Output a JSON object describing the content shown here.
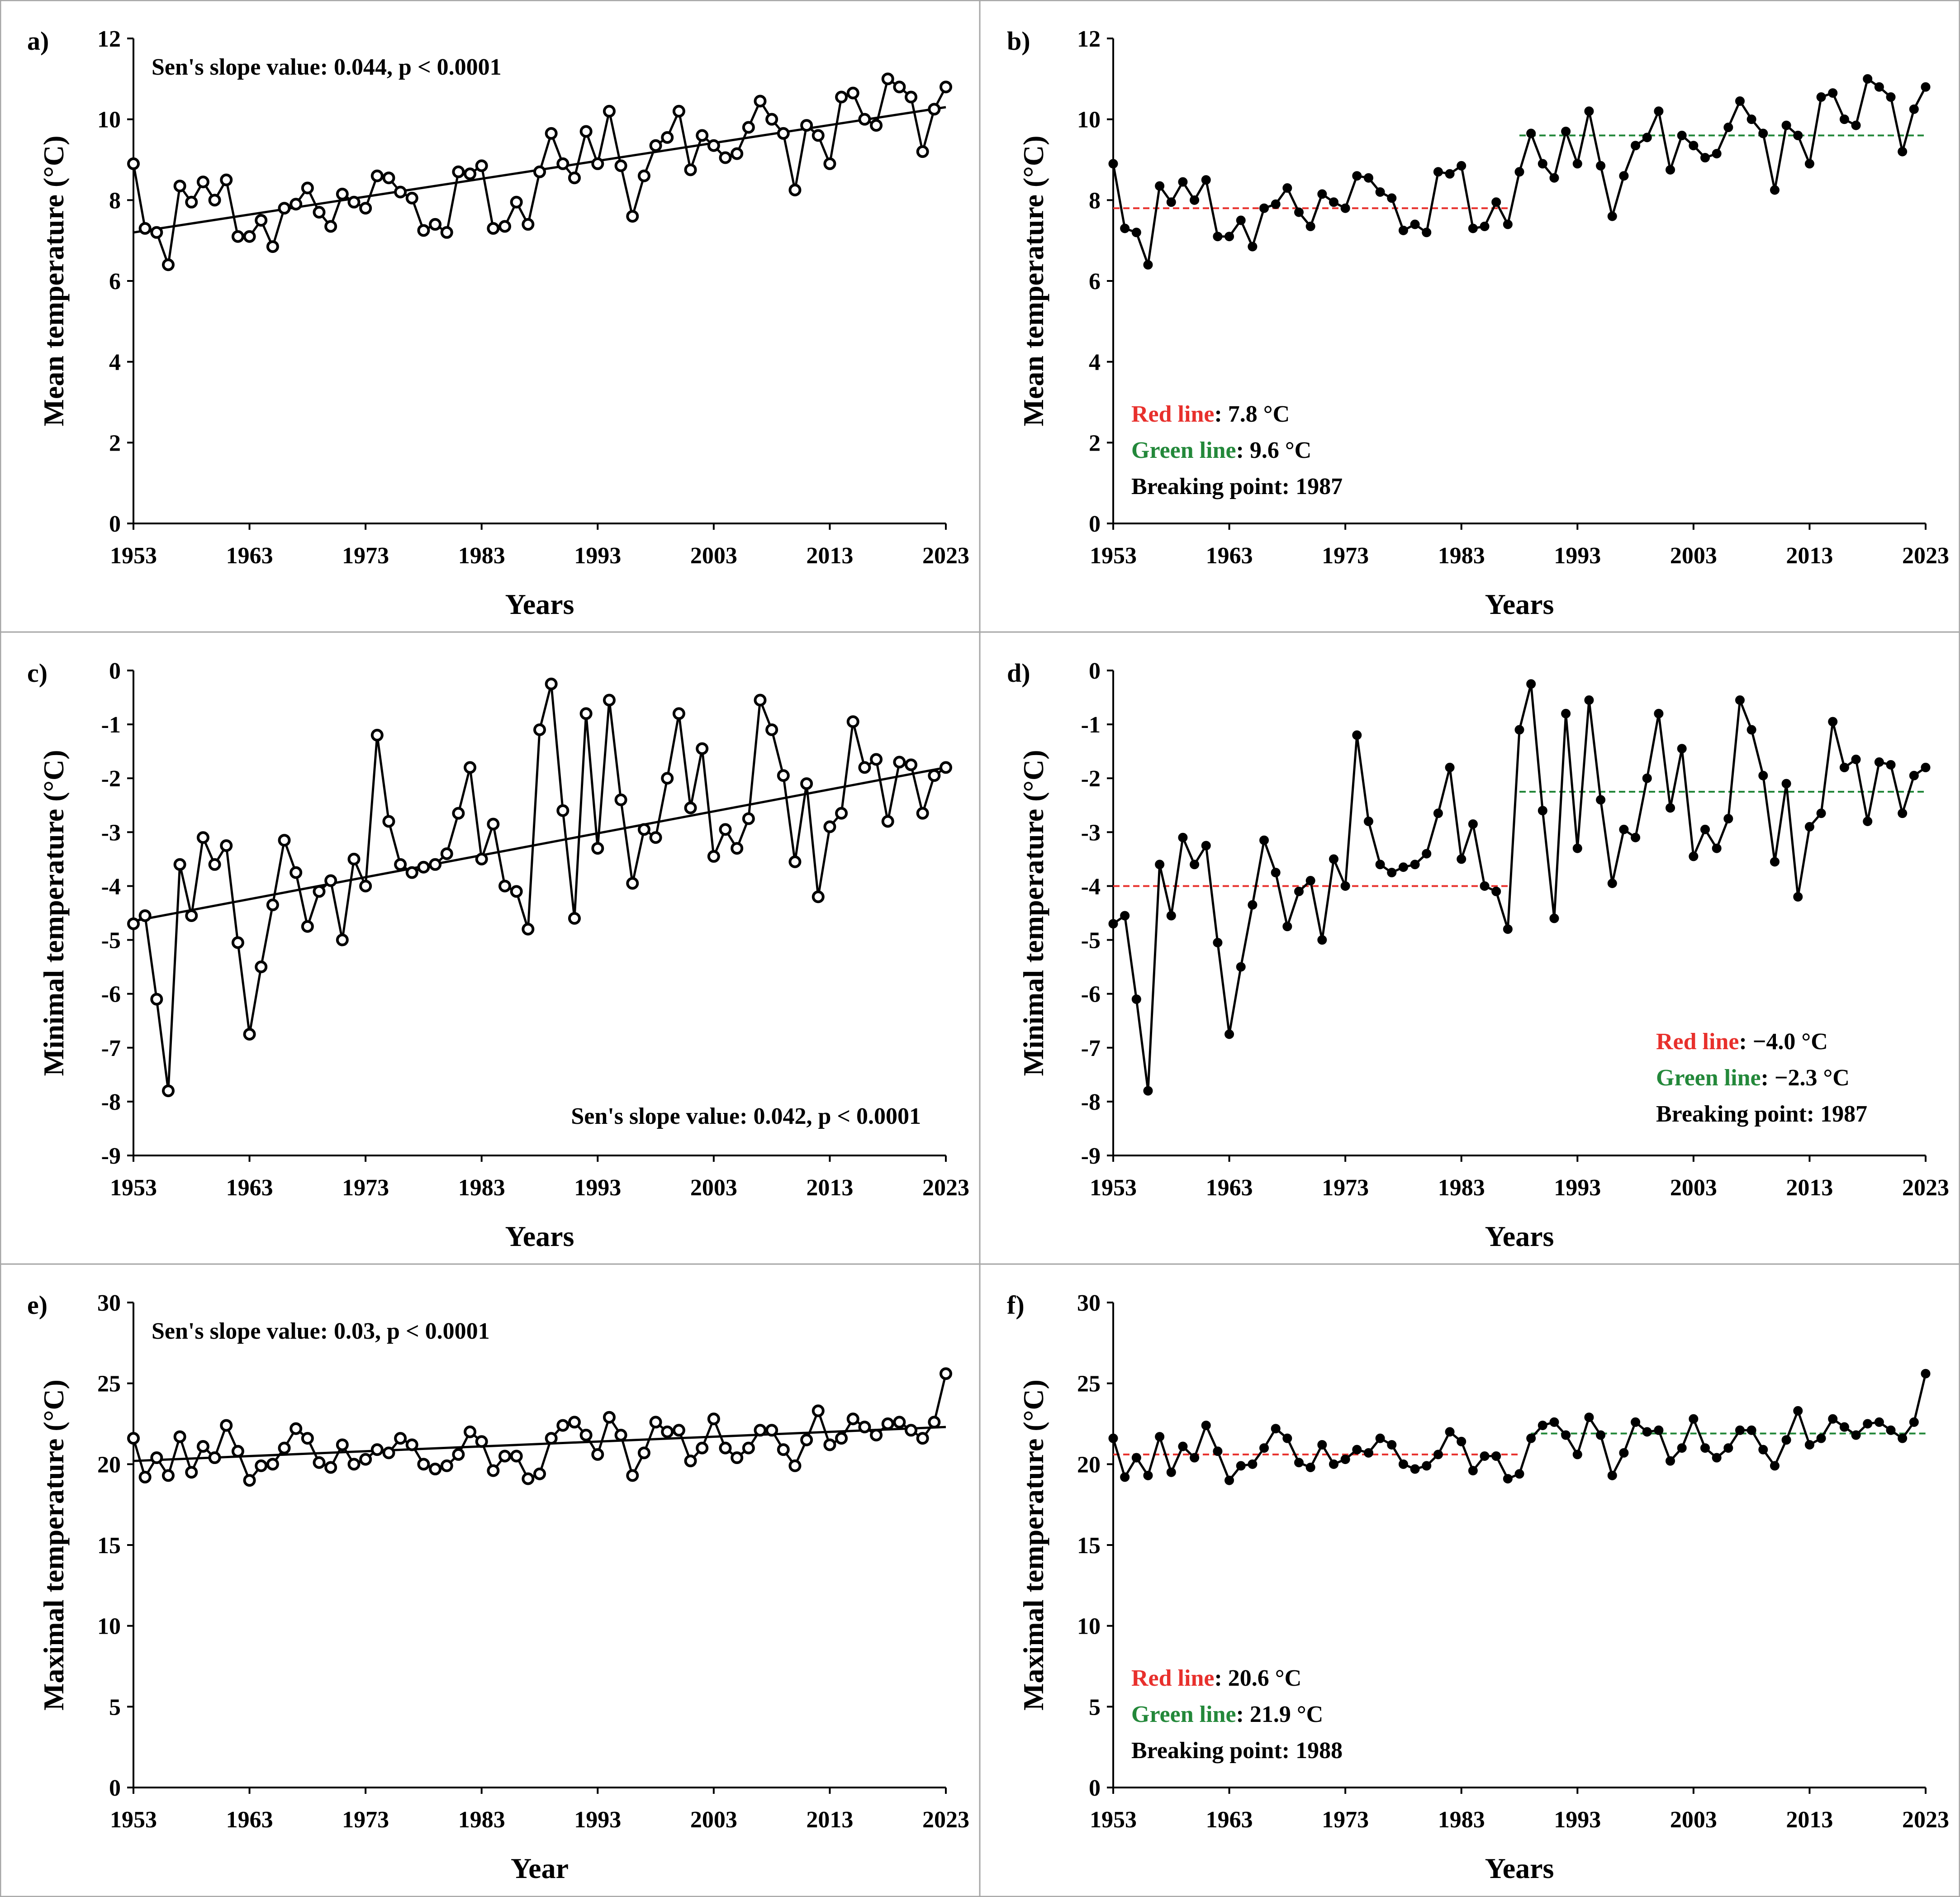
{
  "colors": {
    "red": "#e8302c",
    "green": "#23883a",
    "frame": "#a6a6a6"
  },
  "chart_data": [
    {
      "id": "a",
      "tag": "a)",
      "type": "line",
      "xlabel": "Years",
      "ylabel": "Mean temperature (°C)",
      "xlim": [
        1953,
        2023
      ],
      "ylim": [
        0,
        12
      ],
      "xticks": [
        "1953",
        "1963",
        "1973",
        "1983",
        "1993",
        "2003",
        "2013",
        "2023"
      ],
      "yticks": [
        "0",
        "2",
        "4",
        "6",
        "8",
        "10",
        "12"
      ],
      "marker": "open",
      "x_start": 1953,
      "values": [
        8.9,
        7.3,
        7.2,
        6.4,
        8.35,
        7.95,
        8.45,
        8.0,
        8.5,
        7.1,
        7.1,
        7.5,
        6.85,
        7.8,
        7.9,
        8.3,
        7.7,
        7.35,
        8.15,
        7.95,
        7.8,
        8.6,
        8.55,
        8.2,
        8.05,
        7.25,
        7.4,
        7.2,
        8.7,
        8.65,
        8.85,
        7.3,
        7.35,
        7.95,
        7.4,
        8.7,
        9.65,
        8.9,
        8.55,
        9.7,
        8.9,
        10.2,
        8.85,
        7.6,
        8.6,
        9.35,
        9.55,
        10.2,
        8.75,
        9.6,
        9.35,
        9.05,
        9.15,
        9.8,
        10.45,
        10.0,
        9.65,
        8.25,
        9.85,
        9.6,
        8.9,
        10.55,
        10.65,
        10.0,
        9.85,
        11.0,
        10.8,
        10.55,
        9.2,
        10.25,
        10.8
      ],
      "trend": {
        "from": [
          1953,
          7.2
        ],
        "to": [
          2023,
          10.3
        ]
      },
      "annotation": "Sen's slope value: 0.044, p < 0.0001"
    },
    {
      "id": "b",
      "tag": "b)",
      "type": "line",
      "xlabel": "Years",
      "ylabel": "Mean temperature (°C)",
      "xlim": [
        1953,
        2023
      ],
      "ylim": [
        0,
        12
      ],
      "xticks": [
        "1953",
        "1963",
        "1973",
        "1983",
        "1993",
        "2003",
        "2013",
        "2023"
      ],
      "yticks": [
        "0",
        "2",
        "4",
        "6",
        "8",
        "10",
        "12"
      ],
      "marker": "filled",
      "x_start": 1953,
      "values": [
        8.9,
        7.3,
        7.2,
        6.4,
        8.35,
        7.95,
        8.45,
        8.0,
        8.5,
        7.1,
        7.1,
        7.5,
        6.85,
        7.8,
        7.9,
        8.3,
        7.7,
        7.35,
        8.15,
        7.95,
        7.8,
        8.6,
        8.55,
        8.2,
        8.05,
        7.25,
        7.4,
        7.2,
        8.7,
        8.65,
        8.85,
        7.3,
        7.35,
        7.95,
        7.4,
        8.7,
        9.65,
        8.9,
        8.55,
        9.7,
        8.9,
        10.2,
        8.85,
        7.6,
        8.6,
        9.35,
        9.55,
        10.2,
        8.75,
        9.6,
        9.35,
        9.05,
        9.15,
        9.8,
        10.45,
        10.0,
        9.65,
        8.25,
        9.85,
        9.6,
        8.9,
        10.55,
        10.65,
        10.0,
        9.85,
        11.0,
        10.8,
        10.55,
        9.2,
        10.25,
        10.8
      ],
      "segments": [
        {
          "color": "red",
          "from": 1953,
          "to": 1987,
          "value": 7.8
        },
        {
          "color": "green",
          "from": 1988,
          "to": 2023,
          "value": 9.6
        }
      ],
      "legend": [
        {
          "label": "Red line",
          "value": ": 7.8 °C",
          "color": "red"
        },
        {
          "label": "Green line",
          "value": ": 9.6 °C",
          "color": "green"
        },
        {
          "label": "Breaking point: 1987",
          "value": "",
          "color": ""
        }
      ]
    },
    {
      "id": "c",
      "tag": "c)",
      "type": "line",
      "xlabel": "Years",
      "ylabel": "Minimal temperature (°C)",
      "xlim": [
        1953,
        2023
      ],
      "ylim": [
        -9,
        0
      ],
      "xticks": [
        "1953",
        "1963",
        "1973",
        "1983",
        "1993",
        "2003",
        "2013",
        "2023"
      ],
      "yticks": [
        "-9",
        "-8",
        "-7",
        "-6",
        "-5",
        "-4",
        "-3",
        "-2",
        "-1",
        "0"
      ],
      "marker": "open",
      "x_start": 1953,
      "values": [
        -4.7,
        -4.55,
        -6.1,
        -7.8,
        -3.6,
        -4.55,
        -3.1,
        -3.6,
        -3.25,
        -5.05,
        -6.75,
        -5.5,
        -4.35,
        -3.15,
        -3.75,
        -4.75,
        -4.1,
        -3.9,
        -5.0,
        -3.5,
        -4.0,
        -1.2,
        -2.8,
        -3.6,
        -3.75,
        -3.65,
        -3.6,
        -3.4,
        -2.65,
        -1.8,
        -3.5,
        -2.85,
        -4.0,
        -4.1,
        -4.8,
        -1.1,
        -0.25,
        -2.6,
        -4.6,
        -0.8,
        -3.3,
        -0.55,
        -2.4,
        -3.95,
        -2.95,
        -3.1,
        -2.0,
        -0.8,
        -2.55,
        -1.45,
        -3.45,
        -2.95,
        -3.3,
        -2.75,
        -0.55,
        -1.1,
        -1.95,
        -3.55,
        -2.1,
        -4.2,
        -2.9,
        -2.65,
        -0.95,
        -1.8,
        -1.65,
        -2.8,
        -1.7,
        -1.75,
        -2.65,
        -1.95,
        -1.8
      ],
      "trend": {
        "from": [
          1953,
          -4.65
        ],
        "to": [
          2023,
          -1.8
        ]
      },
      "annotation": "Sen's slope value: 0.042, p < 0.0001"
    },
    {
      "id": "d",
      "tag": "d)",
      "type": "line",
      "xlabel": "Years",
      "ylabel": "Minimal temperature (°C)",
      "xlim": [
        1953,
        2023
      ],
      "ylim": [
        -9,
        0
      ],
      "xticks": [
        "1953",
        "1963",
        "1973",
        "1983",
        "1993",
        "2003",
        "2013",
        "2023"
      ],
      "yticks": [
        "-9",
        "-8",
        "-7",
        "-6",
        "-5",
        "-4",
        "-3",
        "-2",
        "-1",
        "0"
      ],
      "marker": "filled",
      "x_start": 1953,
      "values": [
        -4.7,
        -4.55,
        -6.1,
        -7.8,
        -3.6,
        -4.55,
        -3.1,
        -3.6,
        -3.25,
        -5.05,
        -6.75,
        -5.5,
        -4.35,
        -3.15,
        -3.75,
        -4.75,
        -4.1,
        -3.9,
        -5.0,
        -3.5,
        -4.0,
        -1.2,
        -2.8,
        -3.6,
        -3.75,
        -3.65,
        -3.6,
        -3.4,
        -2.65,
        -1.8,
        -3.5,
        -2.85,
        -4.0,
        -4.1,
        -4.8,
        -1.1,
        -0.25,
        -2.6,
        -4.6,
        -0.8,
        -3.3,
        -0.55,
        -2.4,
        -3.95,
        -2.95,
        -3.1,
        -2.0,
        -0.8,
        -2.55,
        -1.45,
        -3.45,
        -2.95,
        -3.3,
        -2.75,
        -0.55,
        -1.1,
        -1.95,
        -3.55,
        -2.1,
        -4.2,
        -2.9,
        -2.65,
        -0.95,
        -1.8,
        -1.65,
        -2.8,
        -1.7,
        -1.75,
        -2.65,
        -1.95,
        -1.8
      ],
      "segments": [
        {
          "color": "red",
          "from": 1953,
          "to": 1987,
          "value": -4.0
        },
        {
          "color": "green",
          "from": 1988,
          "to": 2023,
          "value": -2.25
        }
      ],
      "legend": [
        {
          "label": "Red line",
          "value": ": −4.0 °C",
          "color": "red"
        },
        {
          "label": "Green line",
          "value": ": −2.3 °C",
          "color": "green"
        },
        {
          "label": "Breaking point: 1987",
          "value": "",
          "color": ""
        }
      ]
    },
    {
      "id": "e",
      "tag": "e)",
      "type": "line",
      "xlabel": "Year",
      "ylabel": "Maximal temperature (°C)",
      "xlim": [
        1953,
        2023
      ],
      "ylim": [
        0,
        30
      ],
      "xticks": [
        "1953",
        "1963",
        "1973",
        "1983",
        "1993",
        "2003",
        "2013",
        "2023"
      ],
      "yticks": [
        "0",
        "5",
        "10",
        "15",
        "20",
        "25",
        "30"
      ],
      "marker": "open",
      "x_start": 1953,
      "values": [
        21.6,
        19.2,
        20.4,
        19.3,
        21.7,
        19.5,
        21.1,
        20.4,
        22.4,
        20.8,
        19.0,
        19.9,
        20.0,
        21.0,
        22.2,
        21.6,
        20.1,
        19.8,
        21.2,
        20.0,
        20.3,
        20.9,
        20.7,
        21.6,
        21.2,
        20.0,
        19.7,
        19.9,
        20.6,
        22.0,
        21.4,
        19.6,
        20.5,
        20.5,
        19.1,
        19.4,
        21.6,
        22.4,
        22.6,
        21.8,
        20.6,
        22.9,
        21.8,
        19.3,
        20.7,
        22.6,
        22.0,
        22.1,
        20.2,
        21.0,
        22.8,
        21.0,
        20.4,
        21.0,
        22.1,
        22.1,
        20.9,
        19.9,
        21.5,
        23.3,
        21.2,
        21.6,
        22.8,
        22.3,
        21.8,
        22.5,
        22.6,
        22.1,
        21.6,
        22.6,
        25.6
      ],
      "trend": {
        "from": [
          1953,
          20.2
        ],
        "to": [
          2023,
          22.3
        ]
      },
      "annotation": "Sen's slope value: 0.03, p < 0.0001"
    },
    {
      "id": "f",
      "tag": "f)",
      "type": "line",
      "xlabel": "Years",
      "ylabel": "Maximal temperature (°C)",
      "xlim": [
        1953,
        2023
      ],
      "ylim": [
        0,
        30
      ],
      "xticks": [
        "1953",
        "1963",
        "1973",
        "1983",
        "1993",
        "2003",
        "2013",
        "2023"
      ],
      "yticks": [
        "0",
        "5",
        "10",
        "15",
        "20",
        "25",
        "30"
      ],
      "marker": "filled",
      "x_start": 1953,
      "values": [
        21.6,
        19.2,
        20.4,
        19.3,
        21.7,
        19.5,
        21.1,
        20.4,
        22.4,
        20.8,
        19.0,
        19.9,
        20.0,
        21.0,
        22.2,
        21.6,
        20.1,
        19.8,
        21.2,
        20.0,
        20.3,
        20.9,
        20.7,
        21.6,
        21.2,
        20.0,
        19.7,
        19.9,
        20.6,
        22.0,
        21.4,
        19.6,
        20.5,
        20.5,
        19.1,
        19.4,
        21.6,
        22.4,
        22.6,
        21.8,
        20.6,
        22.9,
        21.8,
        19.3,
        20.7,
        22.6,
        22.0,
        22.1,
        20.2,
        21.0,
        22.8,
        21.0,
        20.4,
        21.0,
        22.1,
        22.1,
        20.9,
        19.9,
        21.5,
        23.3,
        21.2,
        21.6,
        22.8,
        22.3,
        21.8,
        22.5,
        22.6,
        22.1,
        21.6,
        22.6,
        25.6
      ],
      "segments": [
        {
          "color": "red",
          "from": 1953,
          "to": 1988,
          "value": 20.6
        },
        {
          "color": "green",
          "from": 1989,
          "to": 2023,
          "value": 21.9
        }
      ],
      "legend": [
        {
          "label": "Red line",
          "value": ": 20.6 °C",
          "color": "red"
        },
        {
          "label": "Green line",
          "value": ": 21.9 °C",
          "color": "green"
        },
        {
          "label": "Breaking point: 1988",
          "value": "",
          "color": ""
        }
      ]
    }
  ]
}
